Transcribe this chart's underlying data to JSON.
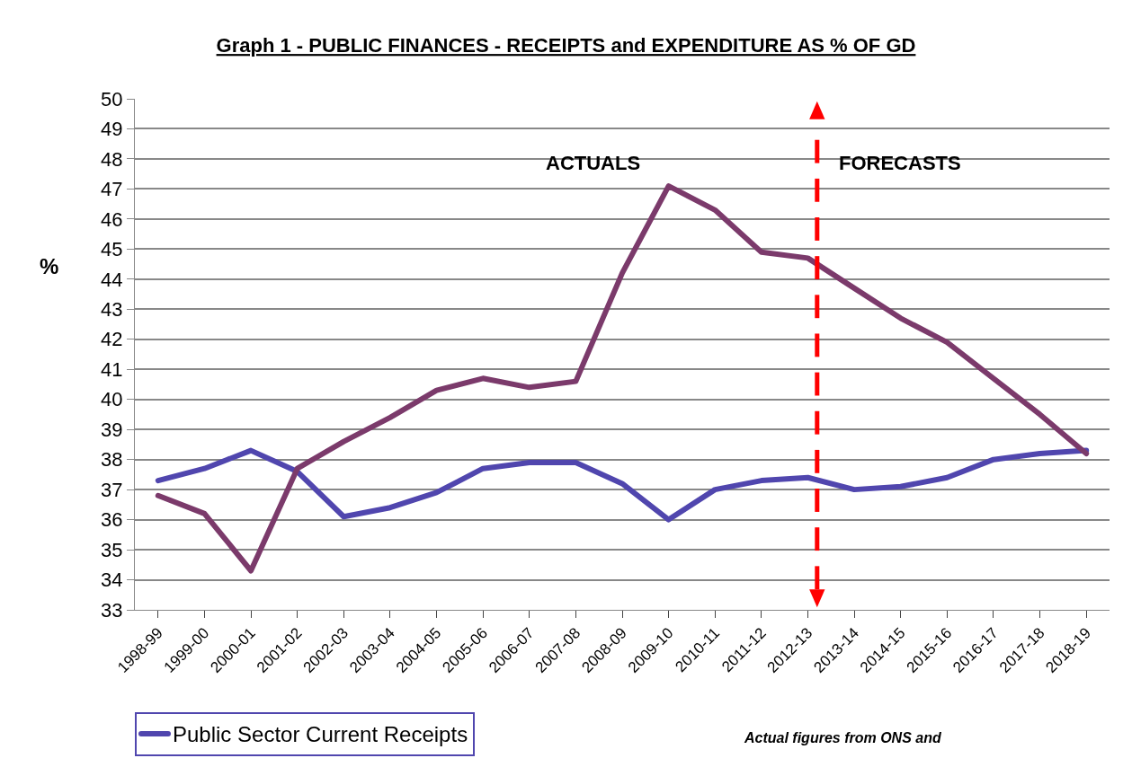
{
  "chart_data": {
    "type": "line",
    "title": "Graph 1 - PUBLIC FINANCES - RECEIPTS and EXPENDITURE AS % OF GD",
    "ylabel": "%",
    "categories": [
      "1998-99",
      "1999-00",
      "2000-01",
      "2001-02",
      "2002-03",
      "2003-04",
      "2004-05",
      "2005-06",
      "2006-07",
      "2007-08",
      "2008-09",
      "2009-10",
      "2010-11",
      "2011-12",
      "2012-13",
      "2013-14",
      "2014-15",
      "2015-16",
      "2016-17",
      "2017-18",
      "2018-19"
    ],
    "series": [
      {
        "name": "Public Sector Current Receipts",
        "color": "#5046ae",
        "values": [
          37.3,
          37.7,
          38.3,
          37.6,
          36.1,
          36.4,
          36.9,
          37.7,
          37.9,
          37.9,
          37.2,
          36.0,
          37.0,
          37.3,
          37.4,
          37.0,
          37.1,
          37.4,
          38.0,
          38.2,
          38.3
        ]
      },
      {
        "color": "#7b3a6b",
        "values": [
          36.8,
          36.2,
          34.3,
          37.7,
          38.6,
          39.4,
          40.3,
          40.7,
          40.4,
          40.6,
          44.2,
          47.1,
          46.3,
          44.9,
          44.7,
          43.7,
          42.7,
          41.9,
          40.7,
          39.5,
          38.2
        ]
      }
    ],
    "ylim": [
      33,
      50
    ],
    "yticks": [
      33,
      34,
      35,
      36,
      37,
      38,
      39,
      40,
      41,
      42,
      43,
      44,
      45,
      46,
      47,
      48,
      49,
      50
    ],
    "grid": "y",
    "legend": "bottom",
    "annotations": [
      "ACTUALS",
      "FORECASTS",
      "Actual figures from ONS and"
    ]
  }
}
